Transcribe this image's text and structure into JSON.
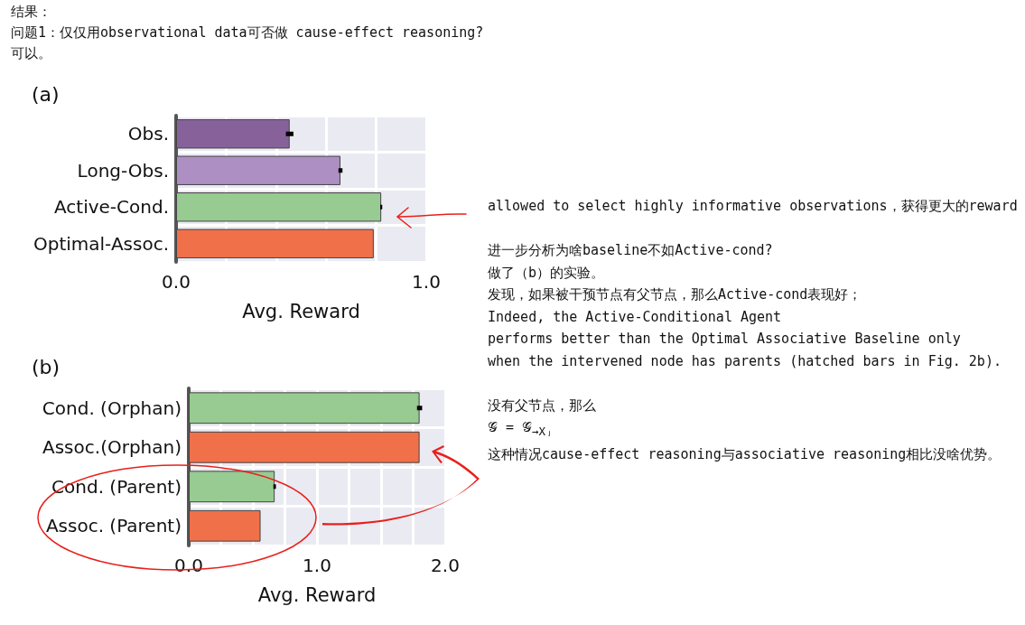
{
  "chart_data": [
    {
      "type": "other",
      "annotations": [
        "结果：",
        "问题1：仅仅用observational data可否做 cause-effect reasoning?",
        "可以。"
      ]
    },
    {
      "type": "bar",
      "title": "(a)",
      "orientation": "horizontal",
      "categories": [
        "Obs.",
        "Long-Obs.",
        "Active-Cond.",
        "Optimal-Assoc."
      ],
      "values": [
        0.454,
        0.657,
        0.82,
        0.79
      ],
      "errors": [
        0.015,
        0.008,
        0.004,
        null
      ],
      "colors": [
        "#87629a",
        "#ad8fc3",
        "#97cb91",
        "#f0704a"
      ],
      "xlim": [
        0,
        1
      ],
      "xticks": [
        {
          "value": 0,
          "label": "0.0"
        },
        {
          "value": 0.2,
          "label": null
        },
        {
          "value": 0.4,
          "label": null
        },
        {
          "value": 0.6,
          "label": null
        },
        {
          "value": 0.8,
          "label": null
        },
        {
          "value": 1,
          "label": "1.0"
        }
      ],
      "xlabel": "Avg. Reward",
      "grid": true
    },
    {
      "type": "other",
      "annotations": [
        "allowed to select highly informative observations，获得更大的reward",
        "进一步分析为啥baseline不如Active-cond?",
        "做了（b）的实验。",
        "发现，如果被干预节点有父节点，那么Active-cond表现好；",
        "Indeed, the Active-Conditional Agent",
        "performs better than the Optimal Associative Baseline only",
        "when the intervened node has parents (hatched bars in Fig. 2b).",
        "没有父节点，那么",
        "𝒢 = 𝒢$_{→Xⱼ}$",
        "这种情况cause-effect reasoning与associative reasoning相比没啥优势。"
      ]
    },
    {
      "type": "bar",
      "title": "(b)",
      "orientation": "horizontal",
      "categories": [
        "Cond. (Orphan)",
        "Assoc.(Orphan)",
        "Cond. (Parent)",
        "Assoc. (Parent)"
      ],
      "values": [
        1.8,
        1.8,
        0.67,
        0.56
      ],
      "errors": [
        0.02,
        null,
        0.01,
        null
      ],
      "colors": [
        "#97cb91",
        "#f0704a",
        "#97cb91",
        "#f0704a"
      ],
      "xlim": [
        0,
        2
      ],
      "xticks": [
        {
          "value": 0,
          "label": "0.0"
        },
        {
          "value": 0.25,
          "label": null
        },
        {
          "value": 0.5,
          "label": null
        },
        {
          "value": 0.75,
          "label": null
        },
        {
          "value": 1,
          "label": "1.0"
        },
        {
          "value": 1.25,
          "label": null
        },
        {
          "value": 1.5,
          "label": null
        },
        {
          "value": 1.75,
          "label": null
        },
        {
          "value": 2,
          "label": "2.0"
        }
      ],
      "xlabel": "Avg. Reward",
      "grid": true
    }
  ]
}
